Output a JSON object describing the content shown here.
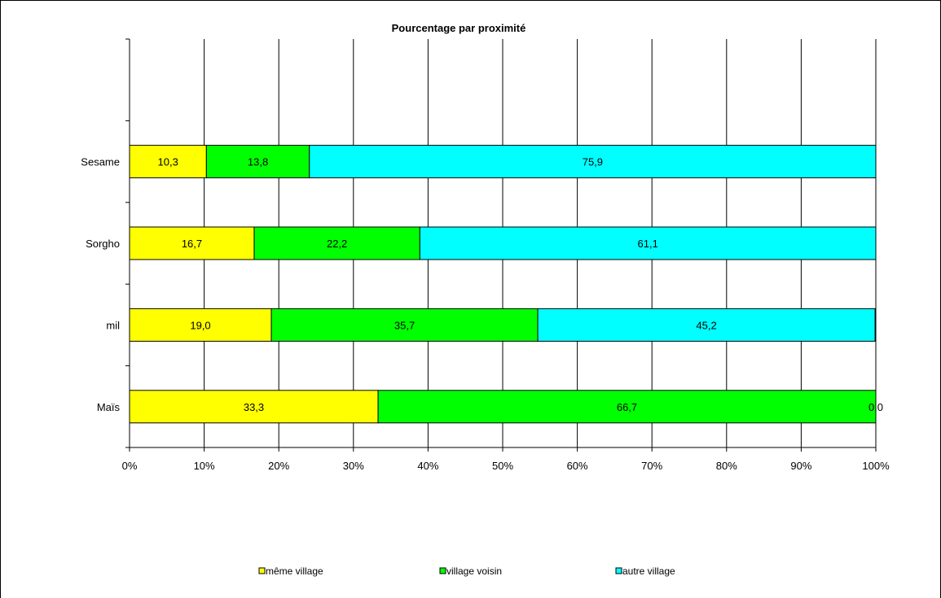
{
  "chart_data": {
    "type": "bar",
    "orientation": "horizontal",
    "stacked": "percent",
    "title": "Pourcentage par proximité",
    "categories": [
      "Maïs",
      "mil",
      "Sorgho",
      "Sesame"
    ],
    "category_slots": 5,
    "series": [
      {
        "name": "même village",
        "color": "#ffff00",
        "values": [
          33.3,
          19.0,
          16.7,
          10.3
        ],
        "labels": [
          "33,3",
          "19,0",
          "16,7",
          "10,3"
        ]
      },
      {
        "name": "village voisin",
        "color": "#00ff00",
        "values": [
          66.7,
          35.7,
          22.2,
          13.8
        ],
        "labels": [
          "66,7",
          "35,7",
          "22,2",
          "13,8"
        ]
      },
      {
        "name": "autre village",
        "color": "#00ffff",
        "values": [
          0.0,
          45.2,
          61.1,
          75.9
        ],
        "labels": [
          "0,0",
          "45,2",
          "61,1",
          "75,9"
        ]
      }
    ],
    "xlim": [
      0,
      100
    ],
    "xticks": [
      "0%",
      "10%",
      "20%",
      "30%",
      "40%",
      "50%",
      "60%",
      "70%",
      "80%",
      "90%",
      "100%"
    ],
    "grid": "vertical",
    "legend_position": "bottom"
  }
}
